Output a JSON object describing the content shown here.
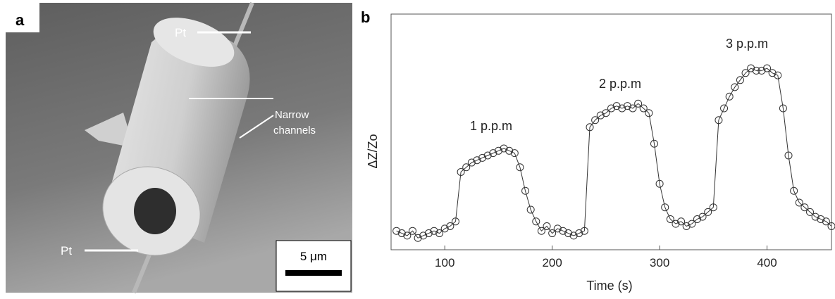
{
  "panel_a": {
    "label": "a",
    "wire_labels": [
      "Pt",
      "Pt"
    ],
    "annotation": [
      "Narrow",
      "channels"
    ],
    "scale_bar": "5 μm"
  },
  "chart_data": {
    "type": "scatter",
    "panel_label": "b",
    "xlabel": "Time (s)",
    "ylabel": "ΔZ/Zo",
    "annotations": [
      "1 p.p.m",
      "2 p.p.m",
      "3 p.p.m"
    ],
    "xlim": [
      50,
      460
    ],
    "xticks": [
      100,
      200,
      300,
      400
    ],
    "ylim": [
      0,
      1
    ],
    "color": "#333333",
    "x": [
      55,
      60,
      65,
      70,
      75,
      80,
      85,
      90,
      95,
      100,
      105,
      110,
      115,
      120,
      125,
      130,
      135,
      140,
      145,
      150,
      155,
      160,
      165,
      170,
      175,
      180,
      185,
      190,
      195,
      200,
      205,
      210,
      215,
      220,
      225,
      230,
      235,
      240,
      245,
      250,
      255,
      260,
      265,
      270,
      275,
      280,
      285,
      290,
      295,
      300,
      305,
      310,
      315,
      320,
      325,
      330,
      335,
      340,
      345,
      350,
      355,
      360,
      365,
      370,
      375,
      380,
      385,
      390,
      395,
      400,
      405,
      410,
      415,
      420,
      425,
      430,
      435,
      440,
      445,
      450,
      455,
      460
    ],
    "values": [
      0.08,
      0.07,
      0.06,
      0.08,
      0.05,
      0.06,
      0.07,
      0.08,
      0.07,
      0.09,
      0.1,
      0.12,
      0.33,
      0.35,
      0.37,
      0.38,
      0.39,
      0.4,
      0.41,
      0.42,
      0.43,
      0.42,
      0.41,
      0.35,
      0.25,
      0.17,
      0.12,
      0.08,
      0.1,
      0.07,
      0.09,
      0.08,
      0.07,
      0.06,
      0.07,
      0.08,
      0.52,
      0.55,
      0.57,
      0.58,
      0.6,
      0.61,
      0.6,
      0.61,
      0.6,
      0.62,
      0.6,
      0.58,
      0.45,
      0.28,
      0.18,
      0.13,
      0.11,
      0.12,
      0.1,
      0.11,
      0.13,
      0.14,
      0.16,
      0.18,
      0.55,
      0.6,
      0.65,
      0.69,
      0.72,
      0.75,
      0.77,
      0.76,
      0.76,
      0.77,
      0.75,
      0.74,
      0.6,
      0.4,
      0.25,
      0.2,
      0.18,
      0.16,
      0.14,
      0.13,
      0.12,
      0.1
    ]
  }
}
